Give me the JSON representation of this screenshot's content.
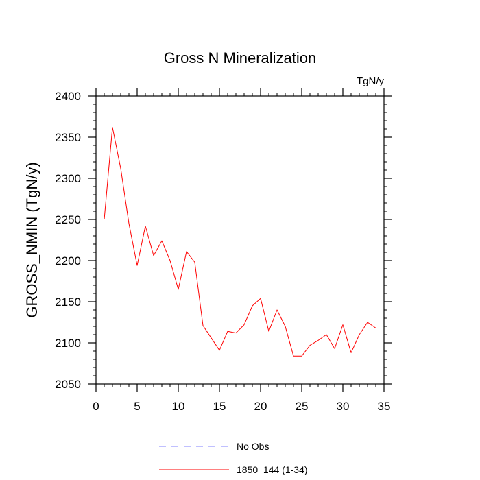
{
  "chart_data": {
    "type": "line",
    "title": "Gross N Mineralization",
    "units_label": "TgN/y",
    "xlabel": "",
    "ylabel": "GROSS_NMIN  (TgN/y)",
    "xlim": [
      0,
      35
    ],
    "ylim": [
      2050,
      2400
    ],
    "xticks": [
      0,
      5,
      10,
      15,
      20,
      25,
      30,
      35
    ],
    "yticks": [
      2050,
      2100,
      2150,
      2200,
      2250,
      2300,
      2350,
      2400
    ],
    "x_minor_step": 1,
    "y_minor_step": 10,
    "series": [
      {
        "name": "1850_144 (1-34)",
        "color": "#ff0000",
        "style": "solid",
        "x": [
          1,
          2,
          3,
          4,
          5,
          6,
          7,
          8,
          9,
          10,
          11,
          12,
          13,
          14,
          15,
          16,
          17,
          18,
          19,
          20,
          21,
          22,
          23,
          24,
          25,
          26,
          27,
          28,
          29,
          30,
          31,
          32,
          33,
          34
        ],
        "values": [
          2250,
          2362,
          2312,
          2245,
          2194,
          2242,
          2206,
          2224,
          2200,
          2165,
          2211,
          2198,
          2121,
          2106,
          2091,
          2114,
          2112,
          2122,
          2145,
          2154,
          2114,
          2140,
          2120,
          2084,
          2084,
          2097,
          2103,
          2110,
          2093,
          2122,
          2088,
          2110,
          2125,
          2118
        ]
      }
    ],
    "legend": {
      "position": "bottom",
      "entries": [
        {
          "label": "No Obs",
          "color": "#8080ff",
          "style": "dashed"
        },
        {
          "label": "1850_144 (1-34)",
          "color": "#ff0000",
          "style": "solid"
        }
      ]
    }
  }
}
